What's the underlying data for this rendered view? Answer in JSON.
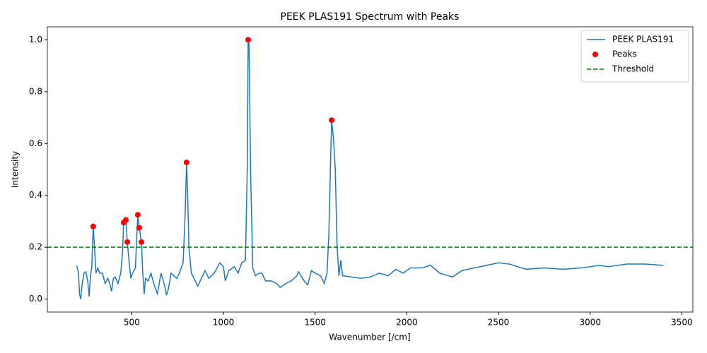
{
  "chart_data": {
    "type": "line",
    "title": "PEEK PLAS191 Spectrum with Peaks",
    "xlabel": "Wavenumber [/cm]",
    "ylabel": "Intensity",
    "xlim": [
      40,
      3560
    ],
    "ylim": [
      -0.05,
      1.05
    ],
    "xticks": [
      500,
      1000,
      1500,
      2000,
      2500,
      3000,
      3500
    ],
    "yticks": [
      {
        "value": 0,
        "label": "0.0"
      },
      0.2,
      0.4,
      0.6,
      0.8,
      {
        "value": 1,
        "label": "1.0"
      }
    ],
    "legend": "upper right",
    "series": [
      {
        "name": "PEEK PLAS191",
        "style": "line",
        "color": "#1f77b4",
        "x": [
          200,
          210,
          215,
          222,
          230,
          240,
          250,
          260,
          268,
          275,
          282,
          290,
          297,
          305,
          315,
          325,
          340,
          355,
          370,
          380,
          390,
          400,
          410,
          425,
          440,
          450,
          456,
          468,
          476,
          485,
          495,
          505,
          520,
          533,
          541,
          553,
          560,
          568,
          575,
          590,
          605,
          620,
          640,
          660,
          680,
          690,
          700,
          715,
          730,
          745,
          760,
          780,
          790,
          799,
          805,
          812,
          825,
          840,
          860,
          880,
          900,
          920,
          950,
          980,
          1000,
          1010,
          1030,
          1060,
          1080,
          1100,
          1120,
          1130,
          1135,
          1140,
          1148,
          1160,
          1175,
          1195,
          1210,
          1230,
          1260,
          1290,
          1310,
          1340,
          1370,
          1400,
          1410,
          1440,
          1460,
          1480,
          1500,
          1530,
          1550,
          1565,
          1575,
          1585,
          1590,
          1600,
          1610,
          1620,
          1630,
          1640,
          1650,
          1700,
          1750,
          1800,
          1850,
          1900,
          1940,
          1980,
          2020,
          2080,
          2130,
          2180,
          2250,
          2300,
          2400,
          2500,
          2560,
          2650,
          2750,
          2850,
          2950,
          3050,
          3100,
          3200,
          3300,
          3400
        ],
        "values": [
          0.13,
          0.1,
          0.02,
          0.0,
          0.06,
          0.1,
          0.105,
          0.07,
          0.01,
          0.09,
          0.12,
          0.28,
          0.2,
          0.1,
          0.12,
          0.1,
          0.1,
          0.06,
          0.08,
          0.06,
          0.03,
          0.08,
          0.085,
          0.06,
          0.1,
          0.18,
          0.295,
          0.305,
          0.22,
          0.15,
          0.08,
          0.1,
          0.12,
          0.325,
          0.275,
          0.22,
          0.1,
          0.02,
          0.08,
          0.07,
          0.1,
          0.06,
          0.02,
          0.1,
          0.05,
          0.015,
          0.04,
          0.1,
          0.09,
          0.08,
          0.1,
          0.14,
          0.3,
          0.527,
          0.4,
          0.2,
          0.1,
          0.08,
          0.05,
          0.08,
          0.11,
          0.08,
          0.1,
          0.14,
          0.125,
          0.07,
          0.11,
          0.125,
          0.1,
          0.14,
          0.15,
          0.5,
          1.0,
          0.98,
          0.5,
          0.12,
          0.09,
          0.1,
          0.1,
          0.07,
          0.07,
          0.06,
          0.045,
          0.06,
          0.07,
          0.09,
          0.105,
          0.07,
          0.055,
          0.11,
          0.1,
          0.09,
          0.06,
          0.1,
          0.25,
          0.55,
          0.69,
          0.62,
          0.5,
          0.2,
          0.09,
          0.15,
          0.09,
          0.085,
          0.08,
          0.085,
          0.1,
          0.09,
          0.115,
          0.1,
          0.12,
          0.12,
          0.13,
          0.1,
          0.085,
          0.11,
          0.125,
          0.14,
          0.135,
          0.115,
          0.12,
          0.115,
          0.12,
          0.13,
          0.125,
          0.135,
          0.135,
          0.13
        ]
      },
      {
        "name": "Peaks",
        "style": "scatter",
        "color": "#ff0000",
        "x": [
          290,
          456,
          468,
          476,
          533,
          541,
          553,
          799,
          1135,
          1590
        ],
        "values": [
          0.28,
          0.295,
          0.305,
          0.22,
          0.325,
          0.275,
          0.22,
          0.527,
          1.0,
          0.69
        ]
      },
      {
        "name": "Threshold",
        "style": "hline",
        "color": "#008000",
        "values": [
          0.2
        ]
      }
    ]
  }
}
